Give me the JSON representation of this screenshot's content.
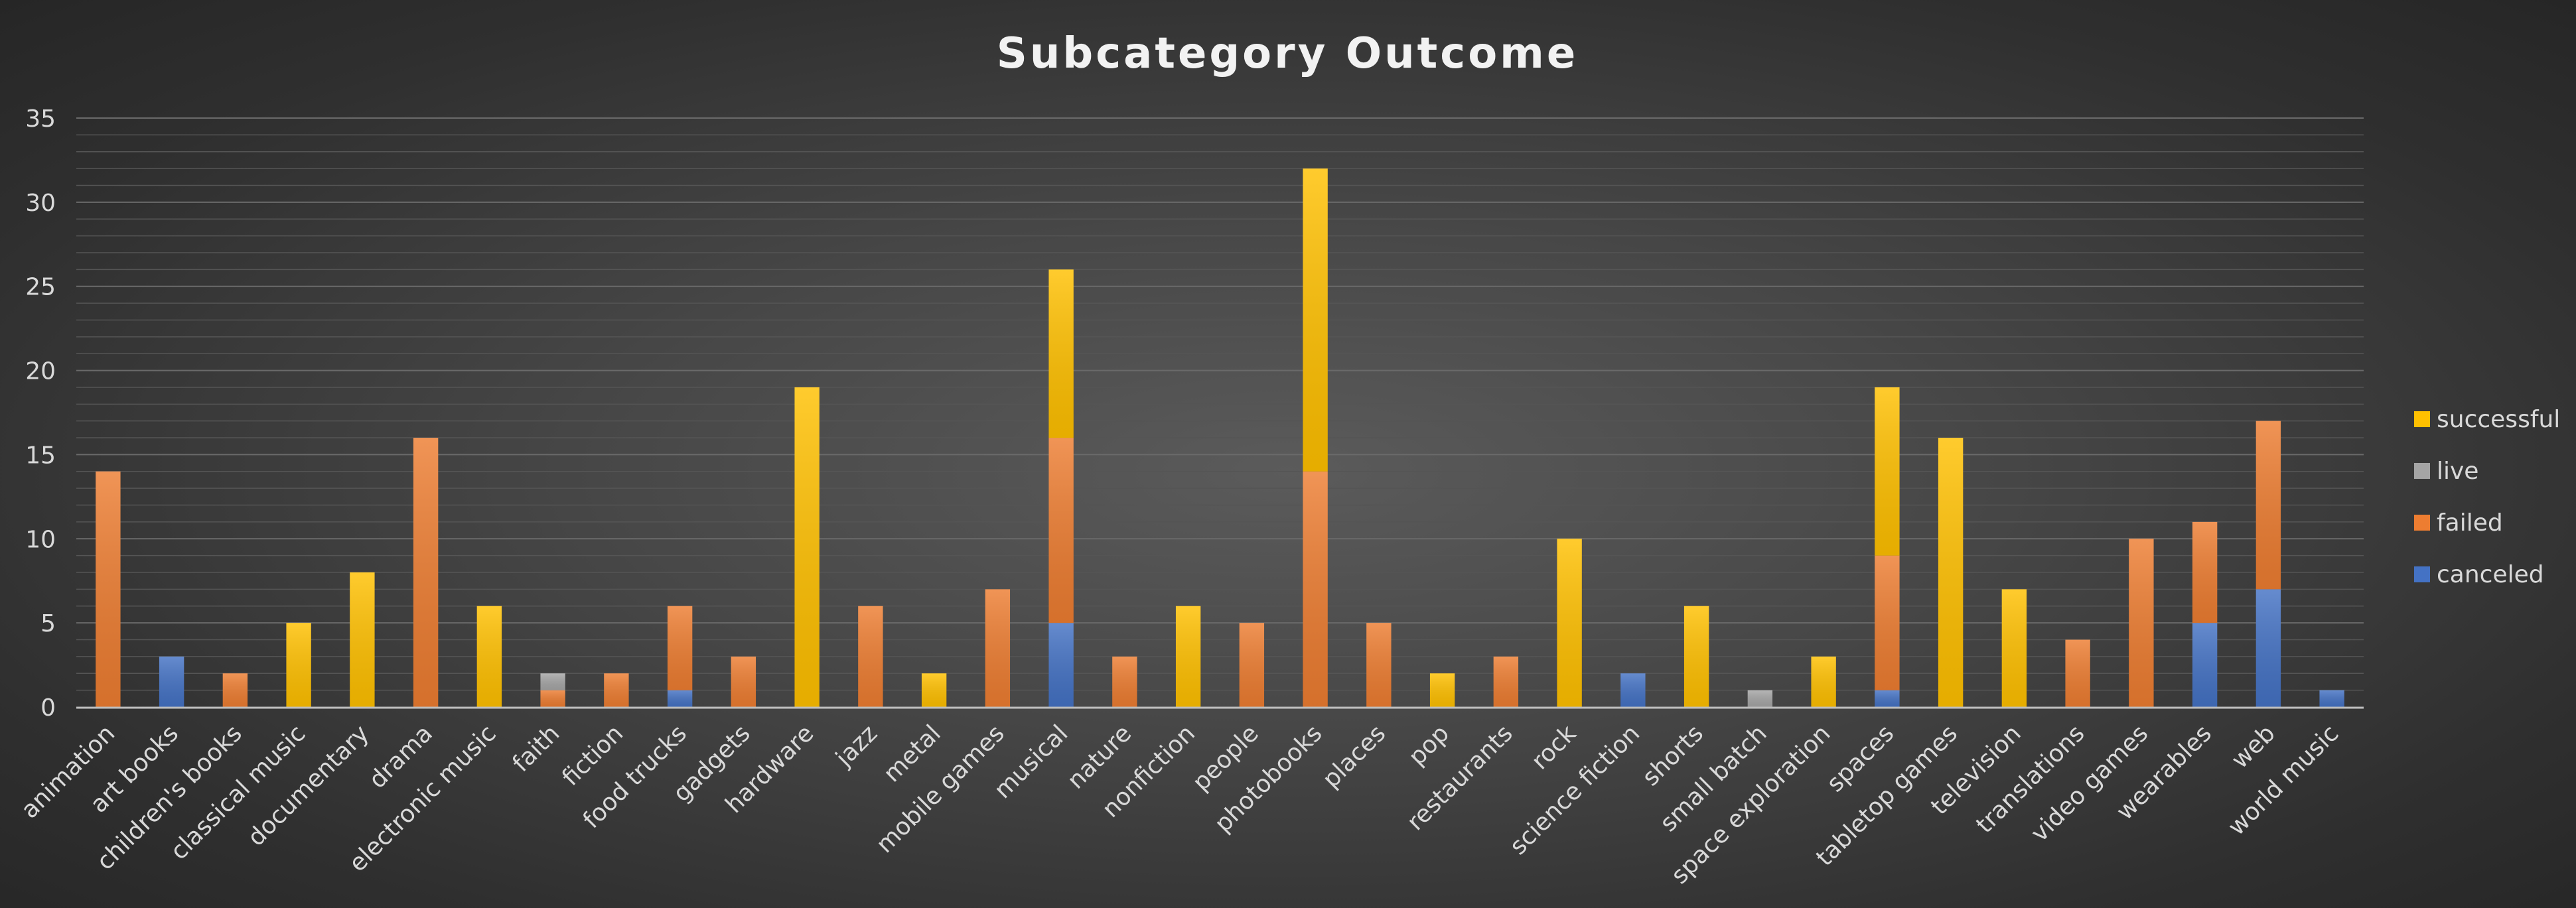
{
  "chart_data": {
    "type": "bar",
    "stacked": true,
    "title": "Subcategory Outcome",
    "xlabel": "",
    "ylabel": "",
    "ylim": [
      0,
      35
    ],
    "y_ticks": [
      0,
      5,
      10,
      15,
      20,
      25,
      30,
      35
    ],
    "grid": true,
    "legend_position": "right",
    "categories": [
      "animation",
      "art books",
      "children's books",
      "classical music",
      "documentary",
      "drama",
      "electronic music",
      "faith",
      "fiction",
      "food trucks",
      "gadgets",
      "hardware",
      "jazz",
      "metal",
      "mobile games",
      "musical",
      "nature",
      "nonfiction",
      "people",
      "photobooks",
      "places",
      "pop",
      "restaurants",
      "rock",
      "science fiction",
      "shorts",
      "small batch",
      "space exploration",
      "spaces",
      "tabletop games",
      "television",
      "translations",
      "video games",
      "wearables",
      "web",
      "world music"
    ],
    "series": [
      {
        "name": "canceled",
        "color": "#4472c4",
        "values": [
          0,
          3,
          0,
          0,
          0,
          0,
          0,
          0,
          0,
          1,
          0,
          0,
          0,
          0,
          0,
          5,
          0,
          0,
          0,
          0,
          0,
          0,
          0,
          0,
          2,
          0,
          0,
          0,
          1,
          0,
          0,
          0,
          0,
          5,
          7,
          1
        ]
      },
      {
        "name": "failed",
        "color": "#ed7d31",
        "values": [
          14,
          0,
          2,
          0,
          0,
          16,
          0,
          1,
          2,
          5,
          3,
          0,
          6,
          0,
          7,
          11,
          3,
          0,
          5,
          14,
          5,
          0,
          3,
          0,
          0,
          0,
          0,
          0,
          8,
          0,
          0,
          4,
          10,
          6,
          10,
          0
        ]
      },
      {
        "name": "live",
        "color": "#a5a5a5",
        "values": [
          0,
          0,
          0,
          0,
          0,
          0,
          0,
          1,
          0,
          0,
          0,
          0,
          0,
          0,
          0,
          0,
          0,
          0,
          0,
          0,
          0,
          0,
          0,
          0,
          0,
          0,
          1,
          0,
          0,
          0,
          0,
          0,
          0,
          0,
          0,
          0
        ]
      },
      {
        "name": "successful",
        "color": "#ffc000",
        "values": [
          0,
          0,
          0,
          5,
          8,
          0,
          6,
          0,
          0,
          0,
          0,
          19,
          0,
          2,
          0,
          10,
          0,
          6,
          0,
          18,
          0,
          2,
          0,
          10,
          0,
          6,
          0,
          3,
          10,
          16,
          7,
          0,
          0,
          0,
          0,
          0
        ]
      }
    ],
    "legend_order": [
      "successful",
      "live",
      "failed",
      "canceled"
    ]
  }
}
